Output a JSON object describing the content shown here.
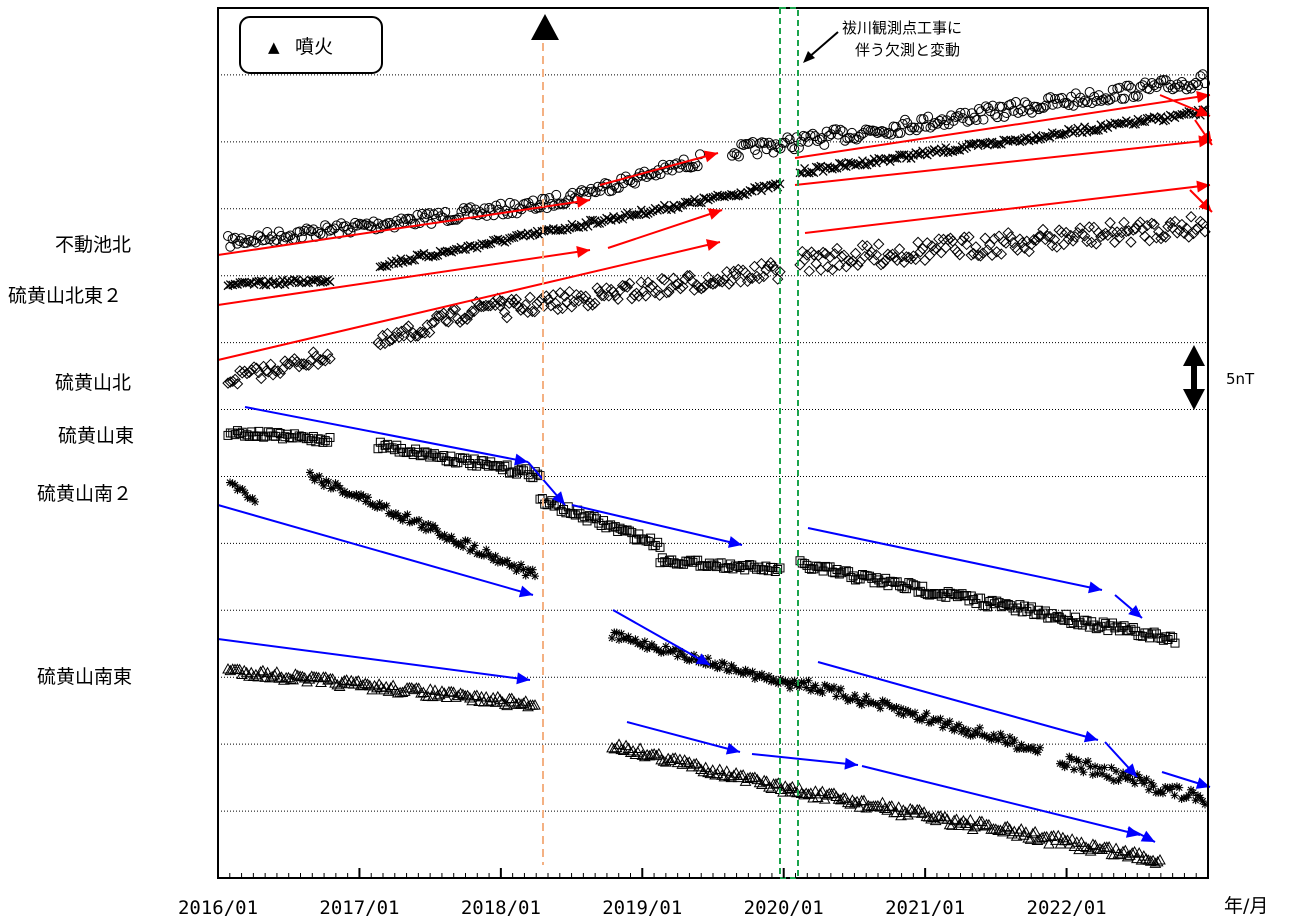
{
  "chart_data": {
    "type": "scatter",
    "x_unit_label": "年/月",
    "x_ticks": [
      "2016/01",
      "2017/01",
      "2018/01",
      "2019/01",
      "2020/01",
      "2021/01",
      "2022/01"
    ],
    "x_range": [
      "2016/01",
      "2022/12"
    ],
    "scale_bar": "5nT",
    "series": [
      {
        "name": "不動池北",
        "marker": "circle"
      },
      {
        "name": "硫黄山北東２",
        "marker": "cross"
      },
      {
        "name": "硫黄山北",
        "marker": "diamond"
      },
      {
        "name": "硫黄山東",
        "marker": "square"
      },
      {
        "name": "硫黄山南２",
        "marker": "asterisk"
      },
      {
        "name": "硫黄山南東",
        "marker": "triangle"
      }
    ],
    "legend": {
      "symbol": "▲",
      "label": "噴火",
      "placement": "top-left"
    },
    "events": [
      {
        "type": "eruption",
        "date": "2018/04",
        "marker": "▲"
      },
      {
        "type": "gap",
        "dates": [
          "2019/12",
          "2020/02"
        ],
        "label_line1": "祓川観測点工事に",
        "label_line2": "伴う欠測と変動"
      }
    ],
    "colors": {
      "eruption_line": "#f4b183",
      "gap_box": "#1aa34a",
      "increase_arrow": "#ff0000",
      "decrease_arrow": "#0000ff",
      "grid": "#000000"
    }
  }
}
